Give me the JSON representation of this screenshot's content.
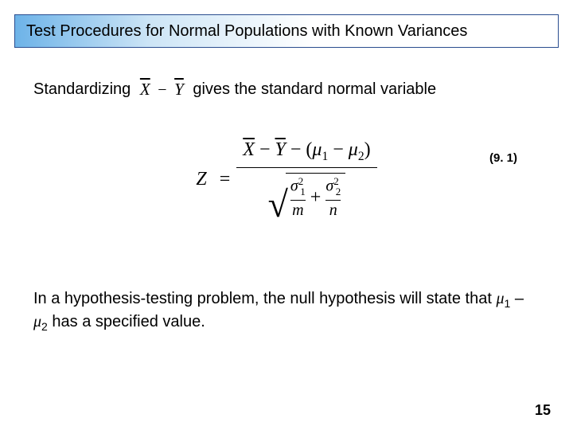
{
  "title": "Test Procedures for Normal Populations with Known Variances",
  "line1_before": "Standardizing",
  "line1_sym_x": "X",
  "line1_sym_minus": "−",
  "line1_sym_y": "Y",
  "line1_after": "gives the standard normal variable",
  "equation": {
    "Z": "Z",
    "eq": "=",
    "Xbar": "X",
    "Ybar": "Y",
    "minus": "−",
    "lpar": "(",
    "rpar": ")",
    "mu": "μ",
    "sub1": "1",
    "sub2": "2",
    "sigma": "σ",
    "sup2": "2",
    "m": "m",
    "n": "n",
    "plus": "+"
  },
  "eq_number": "(9. 1)",
  "para2_a": "In a hypothesis-testing problem, the null hypothesis will state that ",
  "para2_mu1": "μ",
  "para2_s1": "1",
  "para2_mid": " – ",
  "para2_mu2": "μ",
  "para2_s2": "2",
  "para2_b": " has a specified value.",
  "page_number": "15",
  "style": {
    "title_gradient_from": "#6db3e8",
    "title_gradient_to": "#ffffff",
    "title_border": "#2a4d8f",
    "body_font": "Arial",
    "math_font": "Times New Roman",
    "text_color": "#000000",
    "bg_color": "#ffffff",
    "title_fontsize": 20,
    "body_fontsize": 20,
    "eq_fontsize": 24,
    "eqnum_fontsize": 15,
    "pagenum_fontsize": 18
  }
}
